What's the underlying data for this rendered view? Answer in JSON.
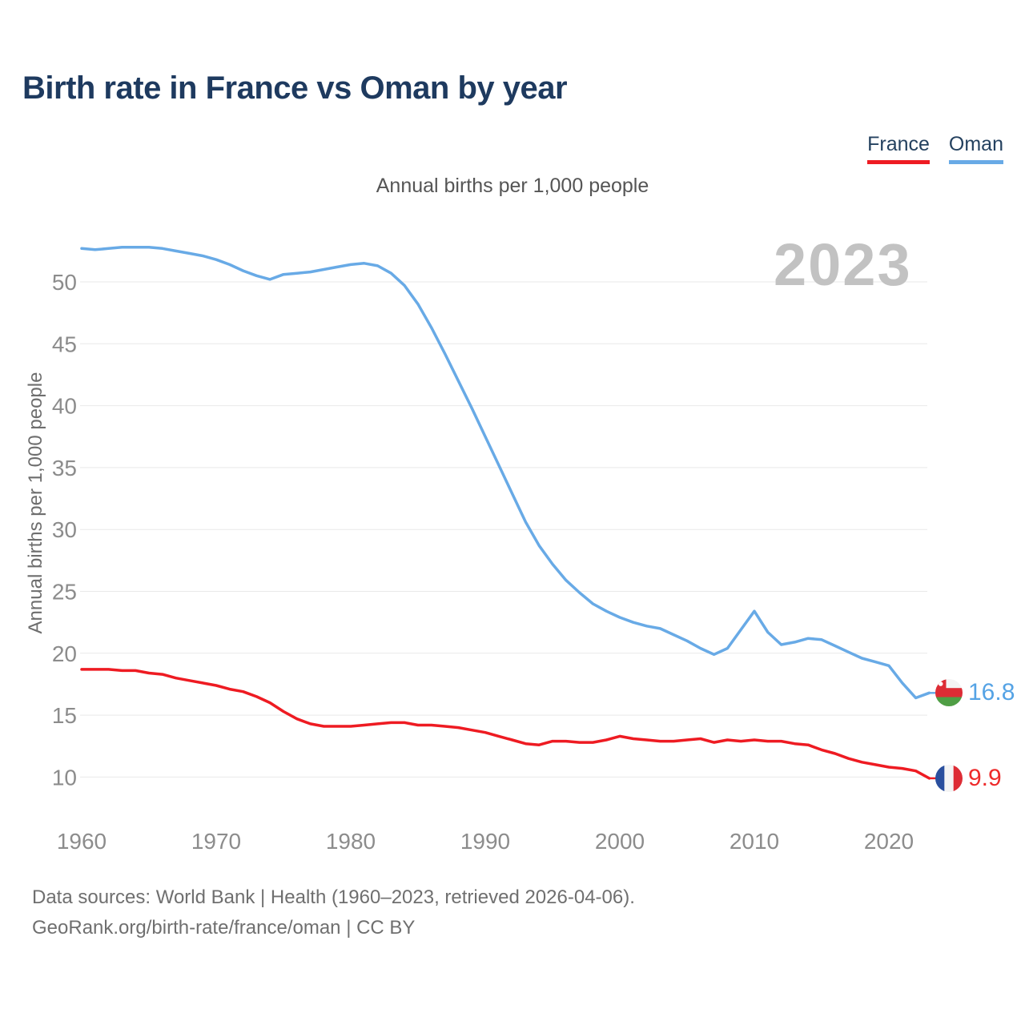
{
  "header": {
    "title": "Birth rate in France vs Oman by year"
  },
  "chart_data": {
    "type": "line",
    "title": "Birth rate in France vs Oman by year",
    "subtitle": "Annual births per 1,000 people",
    "ylabel": "Annual births per 1,000 people",
    "xlabel": "",
    "watermark": "2023",
    "grid": "horizontal",
    "legend_position": "top-right",
    "xlim": [
      1960,
      2023
    ],
    "ylim": [
      8.5,
      54
    ],
    "x_ticks": [
      1960,
      1970,
      1980,
      1990,
      2000,
      2010,
      2020
    ],
    "y_ticks": [
      10,
      15,
      20,
      25,
      30,
      35,
      40,
      45,
      50
    ],
    "x": [
      1960,
      1961,
      1962,
      1963,
      1964,
      1965,
      1966,
      1967,
      1968,
      1969,
      1970,
      1971,
      1972,
      1973,
      1974,
      1975,
      1976,
      1977,
      1978,
      1979,
      1980,
      1981,
      1982,
      1983,
      1984,
      1985,
      1986,
      1987,
      1988,
      1989,
      1990,
      1991,
      1992,
      1993,
      1994,
      1995,
      1996,
      1997,
      1998,
      1999,
      2000,
      2001,
      2002,
      2003,
      2004,
      2005,
      2006,
      2007,
      2008,
      2009,
      2010,
      2011,
      2012,
      2013,
      2014,
      2015,
      2016,
      2017,
      2018,
      2019,
      2020,
      2021,
      2022,
      2023
    ],
    "series": [
      {
        "name": "France",
        "color": "#ee1b22",
        "label_color": "#ee2b2b",
        "end_label": "9.9",
        "values": [
          18.7,
          18.7,
          18.7,
          18.6,
          18.6,
          18.4,
          18.3,
          18.0,
          17.8,
          17.6,
          17.4,
          17.1,
          16.9,
          16.5,
          16.0,
          15.3,
          14.7,
          14.3,
          14.1,
          14.1,
          14.1,
          14.2,
          14.3,
          14.4,
          14.4,
          14.2,
          14.2,
          14.1,
          14.0,
          13.8,
          13.6,
          13.3,
          13.0,
          12.7,
          12.6,
          12.9,
          12.9,
          12.8,
          12.8,
          13.0,
          13.3,
          13.1,
          13.0,
          12.9,
          12.9,
          13.0,
          13.1,
          12.8,
          13.0,
          12.9,
          13.0,
          12.9,
          12.9,
          12.7,
          12.6,
          12.2,
          11.9,
          11.5,
          11.2,
          11.0,
          10.8,
          10.7,
          10.5,
          9.9
        ]
      },
      {
        "name": "Oman",
        "color": "#68aae6",
        "label_color": "#55a3e5",
        "end_label": "16.8",
        "values": [
          52.7,
          52.6,
          52.7,
          52.8,
          52.8,
          52.8,
          52.7,
          52.5,
          52.3,
          52.1,
          51.8,
          51.4,
          50.9,
          50.5,
          50.2,
          50.6,
          50.7,
          50.8,
          51.0,
          51.2,
          51.4,
          51.5,
          51.3,
          50.7,
          49.7,
          48.2,
          46.3,
          44.2,
          42.0,
          39.8,
          37.5,
          35.2,
          32.9,
          30.6,
          28.7,
          27.2,
          25.9,
          24.9,
          24.0,
          23.4,
          22.9,
          22.5,
          22.2,
          22.0,
          21.5,
          21.0,
          20.4,
          19.9,
          20.4,
          21.9,
          23.4,
          21.7,
          20.7,
          20.9,
          21.2,
          21.1,
          20.6,
          20.1,
          19.6,
          19.3,
          19.0,
          17.6,
          16.4,
          16.8
        ]
      }
    ]
  },
  "footer": {
    "line1": "Data sources: World Bank | Health (1960–2023, retrieved 2026-04-06).",
    "line2": "GeoRank.org/birth-rate/france/oman | CC BY"
  }
}
